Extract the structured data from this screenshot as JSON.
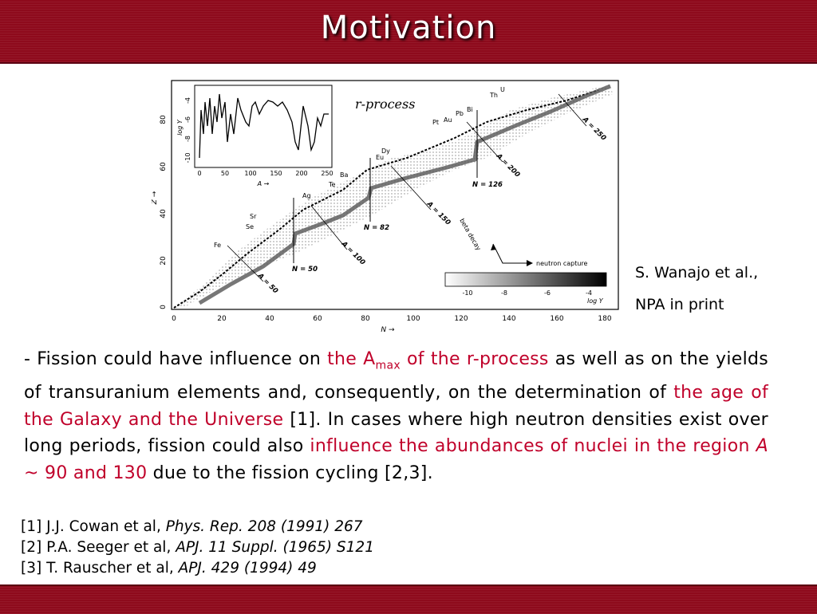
{
  "slide": {
    "title": "Motivation"
  },
  "figure": {
    "label_rprocess": "r-process",
    "axis_z": "Z →",
    "axis_n": "N →",
    "x_ticks": [
      "0",
      "20",
      "40",
      "60",
      "80",
      "100",
      "120",
      "140",
      "160",
      "180"
    ],
    "y_ticks": [
      "0",
      "20",
      "40",
      "60",
      "80"
    ],
    "inset_xlabel": "A →",
    "inset_ylabel": "log Y",
    "inset_x_ticks": [
      "0",
      "50",
      "100",
      "150",
      "200",
      "250"
    ],
    "inset_y_ticks": [
      "-4",
      "-6",
      "-8",
      "-10"
    ],
    "elements": [
      "Fe",
      "Se",
      "Sr",
      "Ag",
      "Te",
      "Ba",
      "Eu",
      "Dy",
      "Pt",
      "Au",
      "Pb",
      "Bi",
      "Th",
      "U"
    ],
    "magic_labels": [
      "N = 50",
      "N = 82",
      "N = 126"
    ],
    "mass_labels": [
      "A = 50",
      "A = 100",
      "A = 150",
      "A = 200",
      "A = 250"
    ],
    "beta_decay": "beta decay",
    "neutron_capture": "neutron capture",
    "colorbar_ticks": [
      "-10",
      "-8",
      "-6",
      "-4"
    ],
    "colorbar_label": "log Y"
  },
  "caption": {
    "line1": "S. Wanajo et al.,",
    "line2": "NPA in print"
  },
  "body": {
    "p1": "- Fission could have influence on ",
    "h1a": "the A",
    "h1sub": "max",
    "h1b": " of the r-process",
    "p2": " as well as on the yields of transuranium elements and, consequently, on the determination of ",
    "h2": "the age of the Galaxy and the Universe",
    "p3": " [1]. In cases where high neutron densities exist over long periods, fission could also ",
    "h3a": "influence the abundances of nuclei in the region ",
    "h3i": "A",
    "h3b": " ~ 90 and 130",
    "p4": " due to the fission cycling [2,3]."
  },
  "refs": [
    {
      "prefix": "[1] J.J. Cowan et al, ",
      "journal": "Phys. Rep. 208 (1991) 267"
    },
    {
      "prefix": "[2] P.A. Seeger et al, ",
      "journal": "APJ. 11 Suppl. (1965) S121"
    },
    {
      "prefix": "[3] T. Rauscher et al, ",
      "journal": "APJ.  429 (1994) 49"
    }
  ]
}
